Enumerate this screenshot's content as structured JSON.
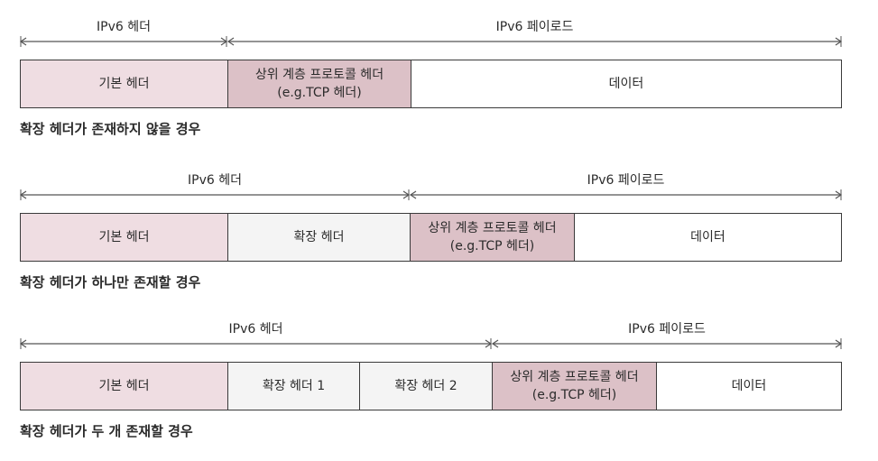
{
  "labels": {
    "ipv6_header": "IPv6 헤더",
    "ipv6_payload": "IPv6 페이로드",
    "base_header": "기본 헤더",
    "ext_header": "확장 헤더",
    "ext_header_1": "확장 헤더 1",
    "ext_header_2": "확장 헤더 2",
    "upper_line1": "상위 계층 프로토콜 헤더",
    "upper_line2": "(e.g.TCP 헤더)",
    "data": "데이터"
  },
  "captions": {
    "none": "확장 헤더가 존재하지 않을 경우",
    "one": "확장 헤더가 하나만 존재할 경우",
    "two": "확장 헤더가 두 개 존재할 경우"
  },
  "colors": {
    "base_header_fill": "#efdde2",
    "upper_header_fill": "#dcc1c7",
    "extension_fill": "#f4f4f4",
    "data_fill": "#ffffff"
  }
}
